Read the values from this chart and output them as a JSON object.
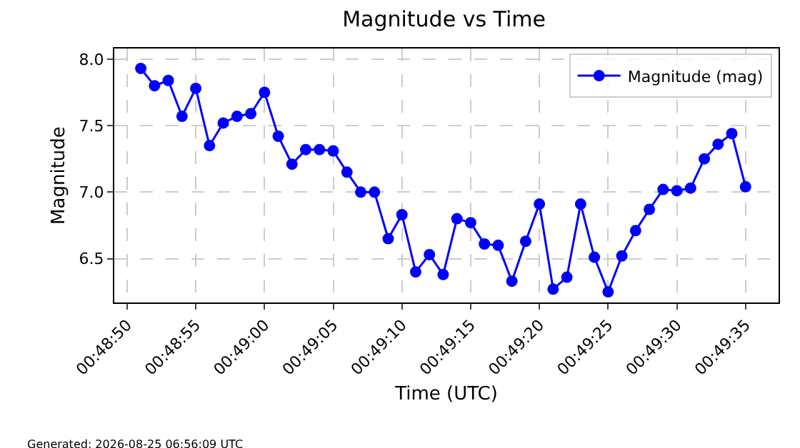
{
  "chart_data": {
    "type": "line",
    "title": "Magnitude vs Time",
    "xlabel": "Time (UTC)",
    "ylabel": "Magnitude",
    "x": [
      0.8141667,
      0.8144444,
      0.8147222,
      0.815,
      0.8152778,
      0.8155556,
      0.8158333,
      0.8161111,
      0.8163889,
      0.8166667,
      0.8169444,
      0.8172222,
      0.8175,
      0.8177778,
      0.8180556,
      0.8183333,
      0.8186111,
      0.8188889,
      0.8191667,
      0.8194444,
      0.8197222,
      0.82,
      0.8202778,
      0.8205556,
      0.8208333,
      0.8211111,
      0.8213889,
      0.8216667,
      0.8219444,
      0.8222222,
      0.8225,
      0.8227778,
      0.8230556,
      0.8233333,
      0.8236111,
      0.8238889,
      0.8241667,
      0.8244444,
      0.8247222,
      0.825,
      0.8252778,
      0.8255556,
      0.8258333,
      0.8261111,
      0.8263889
    ],
    "series": [
      {
        "name": "Magnitude (mag)",
        "color": "#0000ff",
        "values": [
          7.93,
          7.8,
          7.84,
          7.57,
          7.78,
          7.35,
          7.52,
          7.57,
          7.59,
          7.75,
          7.42,
          7.21,
          7.32,
          7.32,
          7.31,
          7.15,
          7.0,
          7.0,
          6.65,
          6.83,
          6.4,
          6.53,
          6.38,
          6.8,
          6.77,
          6.61,
          6.6,
          6.33,
          6.63,
          6.91,
          6.27,
          6.36,
          6.91,
          6.51,
          6.25,
          6.52,
          6.71,
          6.87,
          7.02,
          7.01,
          7.03,
          7.25,
          7.36,
          7.44,
          7.04
        ]
      }
    ],
    "xlim": [
      0.813631,
      0.827056
    ],
    "xticks": [
      {
        "value": 0.8138889,
        "label": "00:48:50"
      },
      {
        "value": 0.8152778,
        "label": "00:48:55"
      },
      {
        "value": 0.8166667,
        "label": "00:49:00"
      },
      {
        "value": 0.8180556,
        "label": "00:49:05"
      },
      {
        "value": 0.8194444,
        "label": "00:49:10"
      },
      {
        "value": 0.8208333,
        "label": "00:49:15"
      },
      {
        "value": 0.8222222,
        "label": "00:49:20"
      },
      {
        "value": 0.8236111,
        "label": "00:49:25"
      },
      {
        "value": 0.825,
        "label": "00:49:30"
      },
      {
        "value": 0.8263889,
        "label": "00:49:35"
      }
    ],
    "ylim": [
      6.17,
      8.08
    ],
    "yticks": [
      {
        "value": 6.5,
        "label": "6.5"
      },
      {
        "value": 7.0,
        "label": "7.0"
      },
      {
        "value": 7.5,
        "label": "7.5"
      },
      {
        "value": 8.0,
        "label": "8.0"
      }
    ],
    "grid": true,
    "legend": "top right",
    "marker": "circle",
    "line_style": "solid",
    "annotations": [
      "Generated: 2026-08-25 06:56:09 UTC"
    ]
  }
}
